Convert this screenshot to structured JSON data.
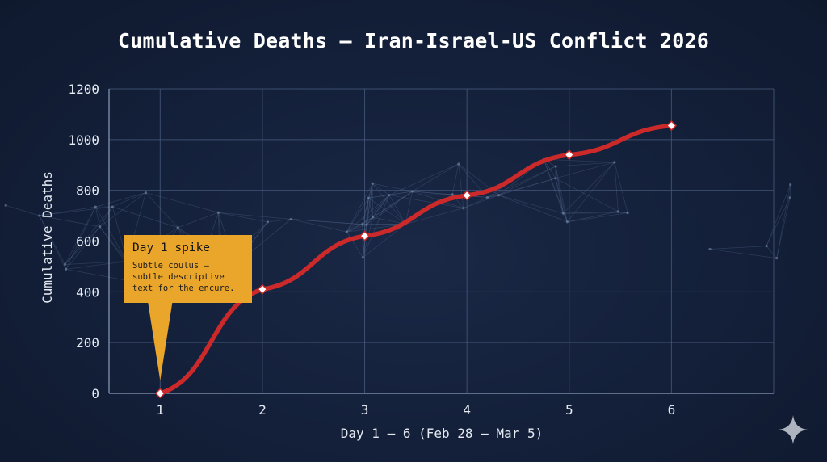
{
  "chart_data": {
    "type": "line",
    "title": "Cumulative Deaths — Iran-Israel-US Conflict 2026",
    "xlabel": "Day 1 – 6 (Feb 28 – Mar 5)",
    "ylabel": "Cumulative Deaths",
    "x": [
      1,
      2,
      3,
      4,
      5,
      6
    ],
    "x_ticks": [
      "1",
      "2",
      "3",
      "4",
      "5",
      "6"
    ],
    "y_ticks": [
      "0",
      "200",
      "400",
      "600",
      "800",
      "1000",
      "1200"
    ],
    "ylim": [
      0,
      1200
    ],
    "xlim": [
      0.5,
      7
    ],
    "grid": true,
    "series": [
      {
        "values": [
          0,
          410,
          620,
          780,
          940,
          1055
        ]
      }
    ],
    "annotation": {
      "title": "Day 1 spike",
      "lines": [
        "Subtle coulus —",
        "subtle descriptive",
        "text for the encure."
      ],
      "target_x": 1,
      "target_y": 0
    }
  },
  "colors": {
    "background": "#131f38",
    "grid": "#4a5d7f",
    "line": "#cc2a2a",
    "marker_fill": "#ffffff",
    "callout": "#eaa62a"
  },
  "icons": {
    "corner": "sparkle-icon"
  }
}
